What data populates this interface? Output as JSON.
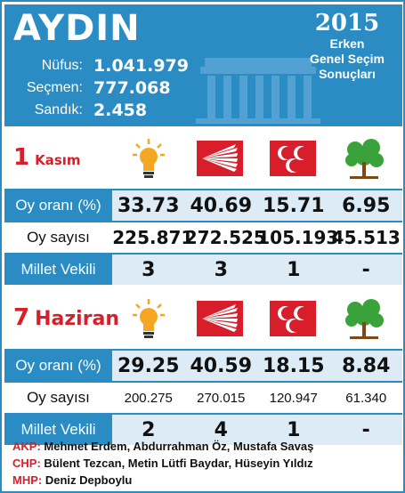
{
  "header": {
    "city": "AYDIN",
    "population_label": "Nüfus:",
    "population_value": "1.041.979",
    "voters_label": "Seçmen:",
    "voters_value": "777.068",
    "boxes_label": "Sandık:",
    "boxes_value": "2.458",
    "badge_year": "2015",
    "badge_line1": "Erken",
    "badge_line2": "Genel Seçim",
    "badge_line3": "Sonuçları"
  },
  "parties": [
    "akp-icon",
    "chp-icon",
    "mhp-icon",
    "hdp-icon"
  ],
  "colors": {
    "accent": "#2b8cc4",
    "red": "#d81e2a",
    "shade": "#dcebf5"
  },
  "nov": {
    "date_num": "1",
    "date_month": "Kasım",
    "rate_label": "Oy oranı (%)",
    "count_label": "Oy sayısı",
    "seats_label": "Millet Vekili",
    "rates": [
      "33.73",
      "40.69",
      "15.71",
      "6.95"
    ],
    "counts": [
      "225.871",
      "272.525",
      "105.193",
      "45.513"
    ],
    "seats": [
      "3",
      "3",
      "1",
      "-"
    ]
  },
  "jun": {
    "date_num": "7",
    "date_month": "Haziran",
    "rate_label": "Oy oranı (%)",
    "count_label": "Oy sayısı",
    "seats_label": "Millet Vekili",
    "rates": [
      "29.25",
      "40.59",
      "18.15",
      "8.84"
    ],
    "counts": [
      "200.275",
      "270.015",
      "120.947",
      "61.340"
    ],
    "seats": [
      "2",
      "4",
      "1",
      "-"
    ]
  },
  "footer": {
    "akp_label": "AKP:",
    "akp_names": "Mehmet Erdem, Abdurrahman Öz, Mustafa Savaş",
    "chp_label": "CHP:",
    "chp_names": "Bülent Tezcan, Metin Lütfi Baydar, Hüseyin Yıldız",
    "mhp_label": "MHP:",
    "mhp_names": "Deniz Depboylu"
  }
}
